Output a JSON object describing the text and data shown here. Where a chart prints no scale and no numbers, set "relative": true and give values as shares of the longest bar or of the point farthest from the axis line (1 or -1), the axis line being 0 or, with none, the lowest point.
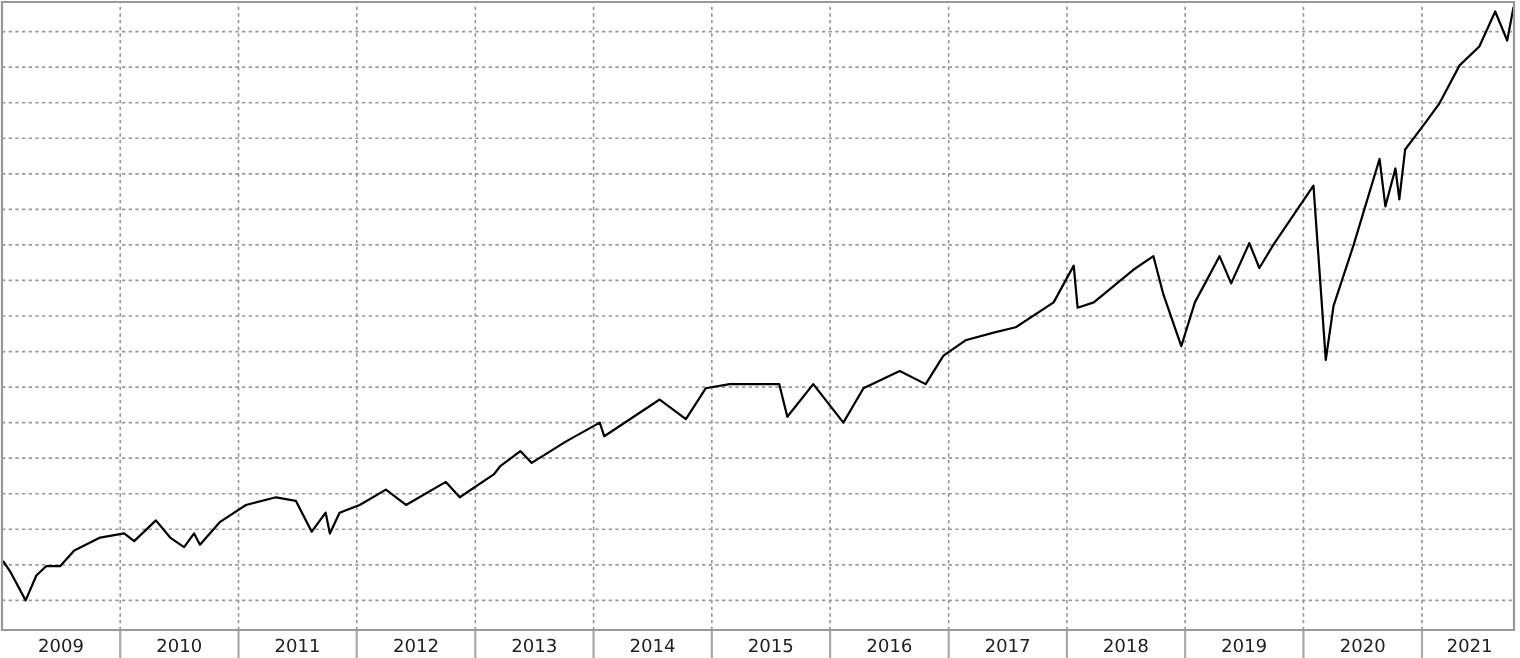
{
  "chart_data": {
    "type": "line",
    "relative": true,
    "grid": true,
    "tick_labels": "x",
    "legend": false,
    "line_style": "solid",
    "xlim": [
      "2009-01-01",
      "2021-10-12"
    ],
    "xticks": [
      {
        "value": "2009-07-02",
        "label": "2009"
      },
      {
        "value": "2010-07-02",
        "label": "2010"
      },
      {
        "value": "2011-07-02",
        "label": "2011"
      },
      {
        "value": "2012-07-02",
        "label": "2012"
      },
      {
        "value": "2013-07-02",
        "label": "2013"
      },
      {
        "value": "2014-07-02",
        "label": "2014"
      },
      {
        "value": "2015-07-02",
        "label": "2015"
      },
      {
        "value": "2016-07-02",
        "label": "2016"
      },
      {
        "value": "2017-07-02",
        "label": "2017"
      },
      {
        "value": "2018-07-02",
        "label": "2018"
      },
      {
        "value": "2019-07-02",
        "label": "2019"
      },
      {
        "value": "2020-07-02",
        "label": "2020"
      },
      {
        "value": "2021-05-28",
        "label": "2021"
      },
      {
        "value": "2010-01-01",
        "label": null
      },
      {
        "value": "2011-01-01",
        "label": null
      },
      {
        "value": "2012-01-01",
        "label": null
      },
      {
        "value": "2013-01-01",
        "label": null
      },
      {
        "value": "2014-01-01",
        "label": null
      },
      {
        "value": "2015-01-01",
        "label": null
      },
      {
        "value": "2016-01-01",
        "label": null
      },
      {
        "value": "2017-01-01",
        "label": null
      },
      {
        "value": "2018-01-01",
        "label": null
      },
      {
        "value": "2019-01-01",
        "label": null
      },
      {
        "value": "2020-01-01",
        "label": null
      },
      {
        "value": "2021-01-01",
        "label": null
      }
    ],
    "x": [
      "2009-01-06",
      "2009-01-27",
      "2009-03-15",
      "2009-04-17",
      "2009-05-18",
      "2009-06-30",
      "2009-08-12",
      "2009-10-31",
      "2010-01-13",
      "2010-02-13",
      "2010-04-21",
      "2010-06-04",
      "2010-07-17",
      "2010-08-17",
      "2010-09-04",
      "2010-11-04",
      "2011-01-24",
      "2011-04-27",
      "2011-06-27",
      "2011-08-15",
      "2011-09-27",
      "2011-10-10",
      "2011-11-09",
      "2012-01-10",
      "2012-03-31",
      "2012-06-01",
      "2012-10-02",
      "2012-11-14",
      "2013-02-28",
      "2013-03-18",
      "2013-05-20",
      "2013-06-24",
      "2013-10-07",
      "2014-01-20",
      "2014-02-03",
      "2014-07-24",
      "2014-10-13",
      "2014-12-13",
      "2015-02-25",
      "2015-07-28",
      "2015-08-22",
      "2015-11-10",
      "2016-02-11",
      "2016-04-13",
      "2016-08-03",
      "2016-10-22",
      "2016-12-16",
      "2017-02-22",
      "2017-05-20",
      "2017-07-27",
      "2017-11-21",
      "2018-01-22",
      "2018-02-03",
      "2018-03-25",
      "2018-07-25",
      "2018-09-25",
      "2018-10-26",
      "2018-12-20",
      "2019-01-31",
      "2019-04-17",
      "2019-05-23",
      "2019-07-18",
      "2019-08-18",
      "2019-09-30",
      "2020-02-01",
      "2020-03-10",
      "2020-04-03",
      "2020-06-04",
      "2020-08-23",
      "2020-09-10",
      "2020-10-11",
      "2020-10-23",
      "2020-11-10",
      "2021-01-11",
      "2021-02-24",
      "2021-04-27",
      "2021-06-27",
      "2021-08-15",
      "2021-09-21",
      "2021-10-10"
    ],
    "series": [
      {
        "color": "#000000",
        "values": [
          0.065,
          0.048,
          0,
          0.042,
          0.058,
          0.058,
          0.084,
          0.106,
          0.113,
          0.1,
          0.135,
          0.106,
          0.09,
          0.113,
          0.094,
          0.132,
          0.161,
          0.174,
          0.168,
          0.116,
          0.148,
          0.113,
          0.148,
          0.161,
          0.187,
          0.161,
          0.2,
          0.174,
          0.213,
          0.226,
          0.252,
          0.232,
          0.268,
          0.3,
          0.277,
          0.339,
          0.306,
          0.358,
          0.365,
          0.365,
          0.31,
          0.365,
          0.3,
          0.358,
          0.387,
          0.365,
          0.413,
          0.439,
          0.452,
          0.461,
          0.503,
          0.565,
          0.494,
          0.503,
          0.558,
          0.581,
          0.516,
          0.429,
          0.503,
          0.581,
          0.535,
          0.603,
          0.561,
          0.6,
          0.7,
          0.406,
          0.497,
          0.6,
          0.745,
          0.665,
          0.729,
          0.677,
          0.761,
          0.806,
          0.839,
          0.903,
          0.935,
          0.994,
          0.945,
          1.0
        ]
      }
    ]
  }
}
